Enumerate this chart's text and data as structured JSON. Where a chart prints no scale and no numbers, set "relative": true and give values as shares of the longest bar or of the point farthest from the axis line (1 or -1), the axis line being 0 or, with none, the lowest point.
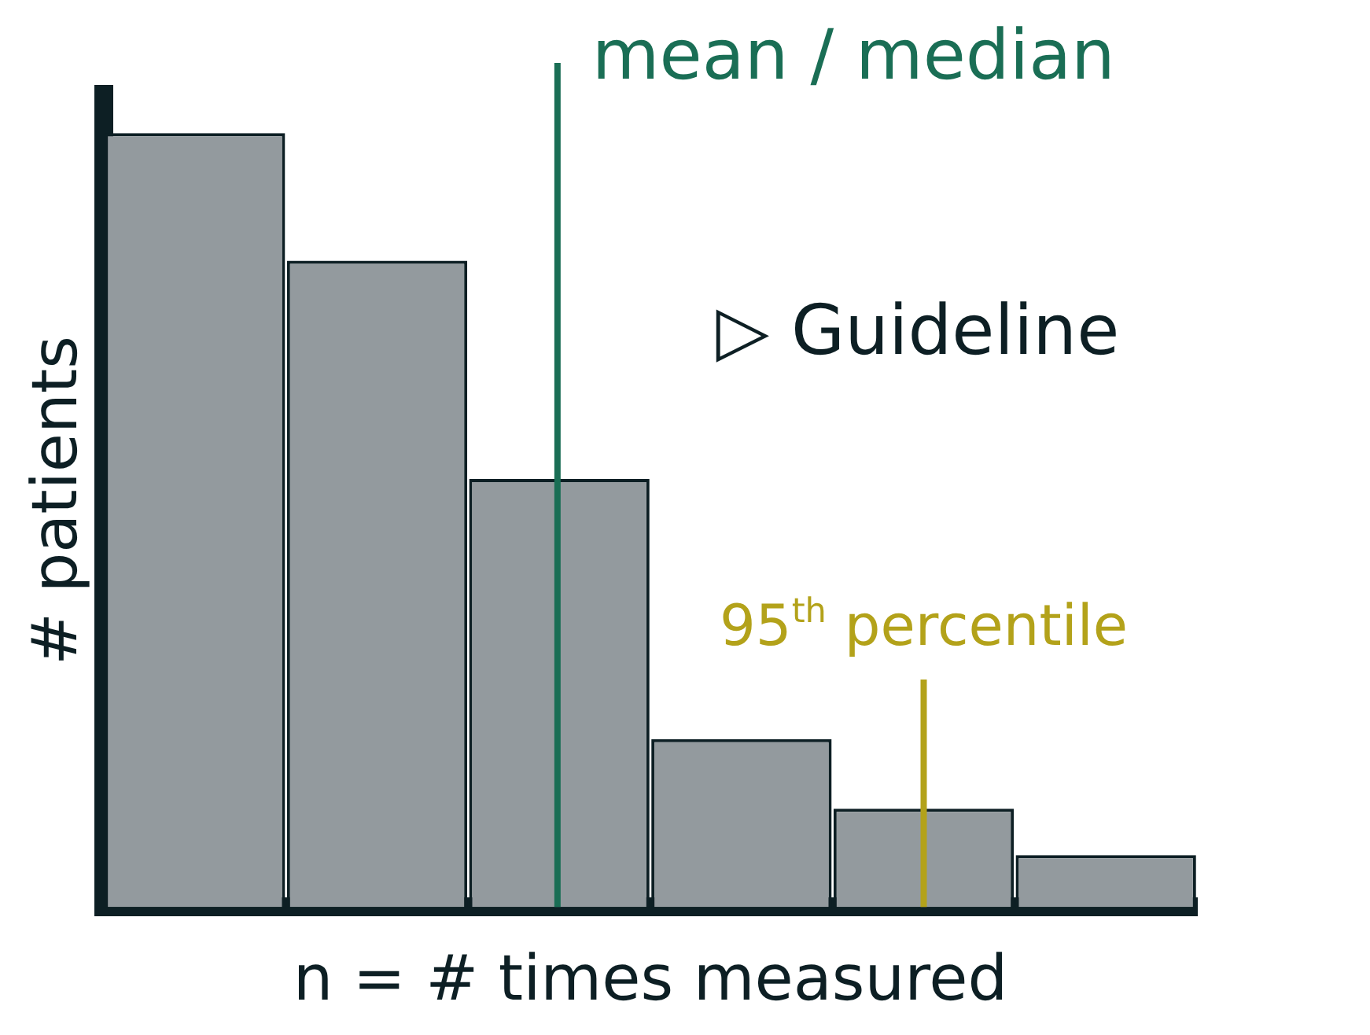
{
  "chart_data": {
    "type": "bar",
    "relative": true,
    "categories": [
      null,
      null,
      null,
      null,
      null,
      null
    ],
    "values": [
      1,
      0.835,
      0.553,
      0.217,
      0.127,
      0.067
    ],
    "color": "#939a9e",
    "xlabel": "n = # times measured",
    "ylabel": "# patients",
    "grid": false,
    "annotations": [
      "mean / median",
      "95$^{th}$ percentile",
      "▷ Guideline"
    ]
  }
}
